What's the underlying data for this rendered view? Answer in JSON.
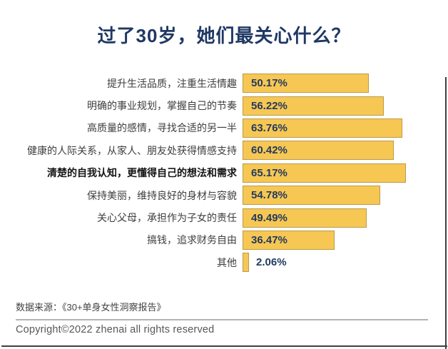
{
  "page": {
    "title": "过了30岁，她们最关心什么？",
    "source_note": "数据来源：《30+单身女性洞察报告》",
    "copyright": "Copyright©2022  zhenai  all rights reserved"
  },
  "chart_data": {
    "type": "bar",
    "orientation": "horizontal",
    "title": "过了30岁，她们最关心什么？",
    "categories": [
      "提升生活品质，注重生活情趣",
      "明确的事业规划，掌握自己的节奏",
      "高质量的感情，寻找合适的另一半",
      "健康的人际关系，从家人、朋友处获得情感支持",
      "清楚的自我认知，更懂得自己的想法和需求",
      "保持美丽，维持良好的身材与容貌",
      "关心父母，承担作为子女的责任",
      "搞钱，追求财务自由",
      "其他"
    ],
    "values": [
      50.17,
      56.22,
      63.76,
      60.42,
      65.17,
      54.78,
      49.49,
      36.47,
      2.06
    ],
    "value_labels": [
      "50.17%",
      "56.22%",
      "63.76%",
      "60.42%",
      "65.17%",
      "54.78%",
      "49.49%",
      "36.47%",
      "2.06%"
    ],
    "highlighted_index": 4,
    "xlim": [
      0,
      70
    ],
    "grid": false,
    "legend": "none",
    "bar_color": "#F7C754",
    "bar_border_color": "#B99B4A",
    "value_label_color": "#223A5E",
    "title_color": "#1F3864"
  }
}
